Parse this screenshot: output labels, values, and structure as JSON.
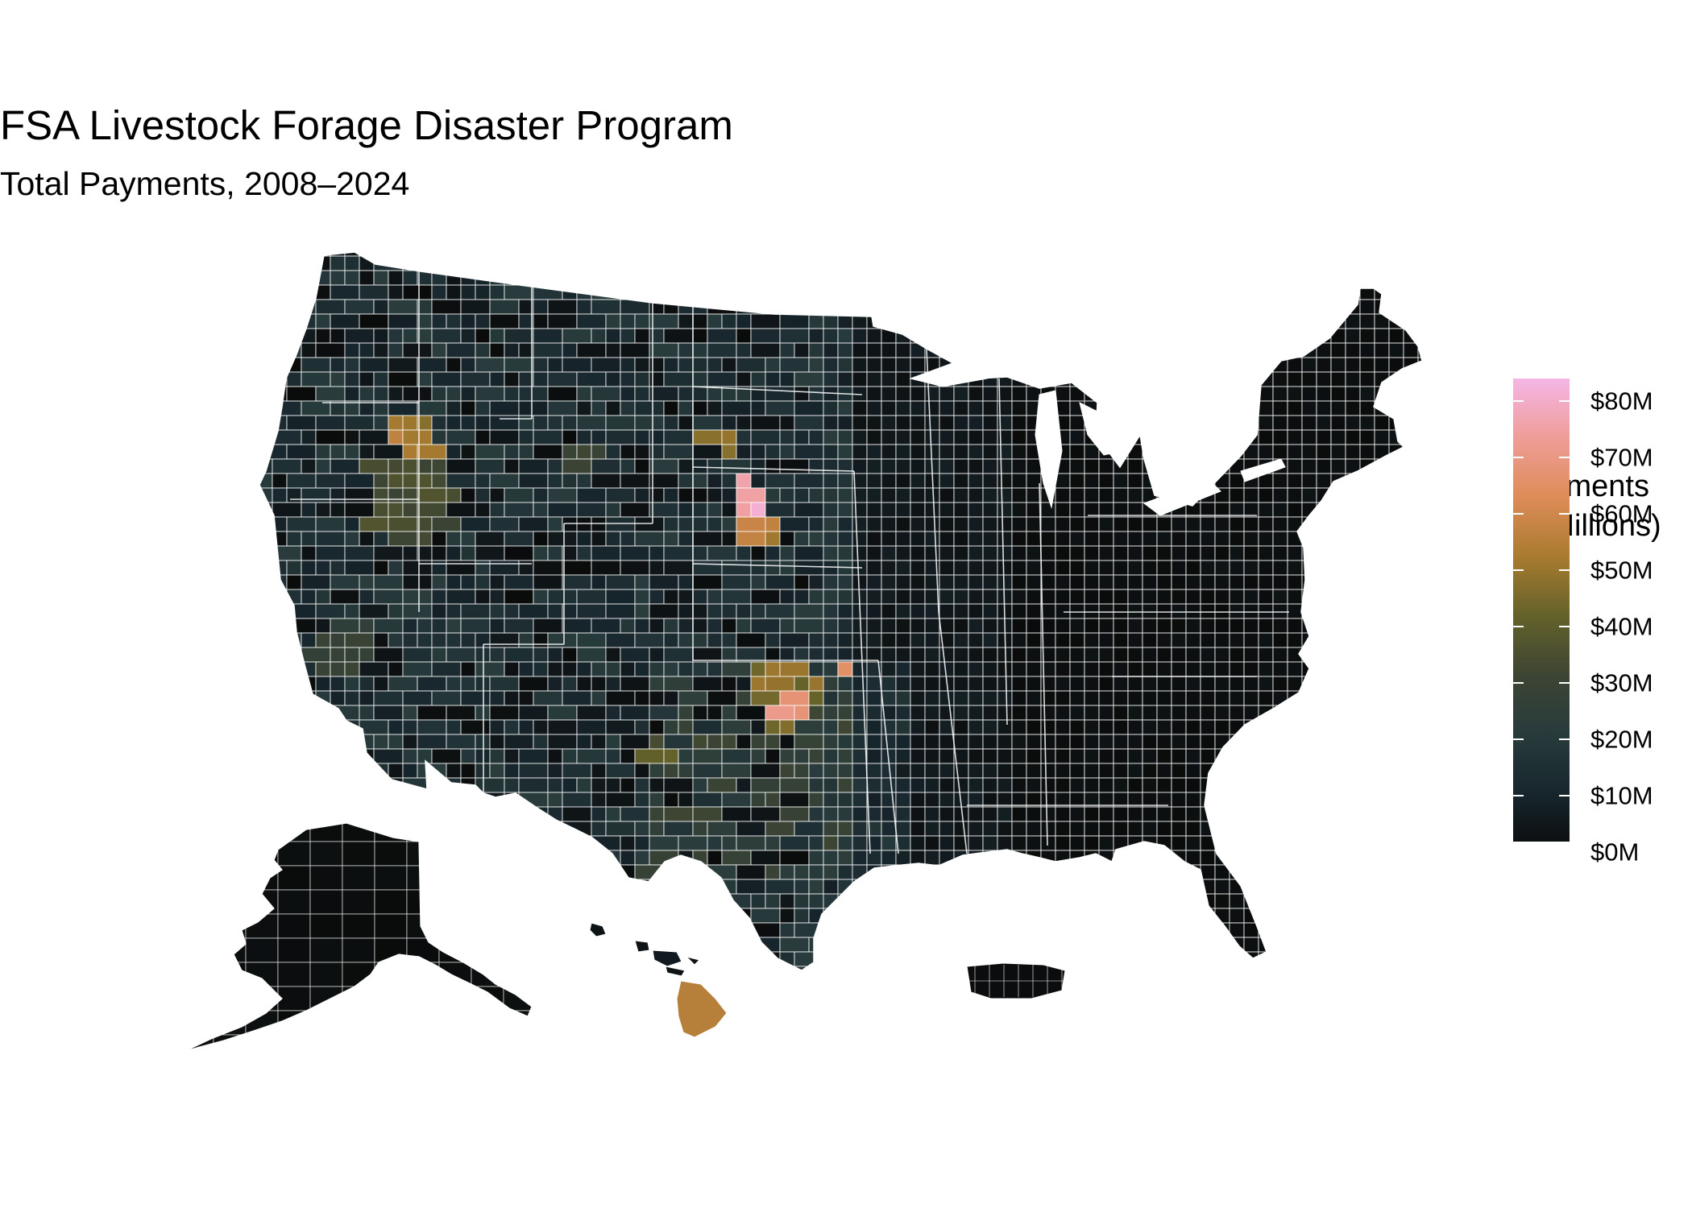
{
  "title": "FSA Livestock Forage Disaster Program",
  "subtitle": "Total Payments, 2008–2024",
  "legend": {
    "title_line1": "Payments",
    "title_line2": "($ Millions)",
    "labels": [
      "$80M",
      "$70M",
      "$60M",
      "$50M",
      "$40M",
      "$30M",
      "$20M",
      "$10M",
      "$0M"
    ],
    "values": [
      80,
      70,
      60,
      50,
      40,
      30,
      20,
      10,
      0
    ],
    "scale_max": 84,
    "colors": [
      "#0a0b0b",
      "#17262d",
      "#283b3c",
      "#3d4533",
      "#64622a",
      "#a97b30",
      "#de8c58",
      "#ef9d98",
      "#f4b6e6"
    ]
  },
  "map_data": {
    "type": "choropleth",
    "unit": "$ Millions",
    "regions_shown": [
      "Contiguous United States",
      "Alaska",
      "Hawaii",
      "Puerto Rico"
    ],
    "highlights": [
      {
        "area": "NE Wyoming / SW South Dakota",
        "value": 82
      },
      {
        "area": "Central Oklahoma",
        "value": 75
      },
      {
        "area": "NE Oklahoma",
        "value": 68
      },
      {
        "area": "South Dakota central",
        "value": 62
      },
      {
        "area": "Idaho (Custer/Lemhi)",
        "value": 57
      },
      {
        "area": "Hawaii (Big Island)",
        "value": 55
      },
      {
        "area": "Oklahoma west-central",
        "value": 52
      },
      {
        "area": "Montana southeast",
        "value": 50
      },
      {
        "area": "New Mexico east-central",
        "value": 42
      },
      {
        "area": "Nevada northeast (Elko)",
        "value": 37
      },
      {
        "area": "Montana central",
        "value": 35
      },
      {
        "area": "Southern California",
        "value": 30
      }
    ],
    "default_value": 5,
    "border_color": "#ffffff"
  }
}
